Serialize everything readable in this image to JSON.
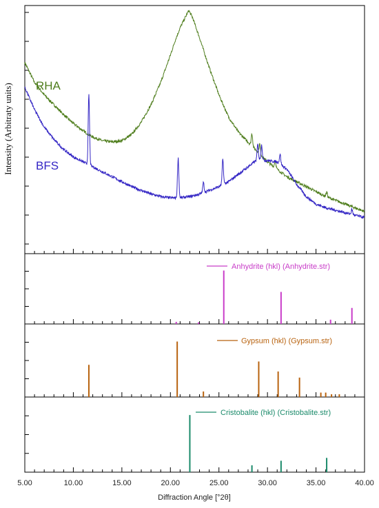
{
  "chart_data": {
    "type": "line",
    "xlabel": "Diffraction Angle [°2θ]",
    "ylabel": "Intensity (Arbitraty units)",
    "xlim": [
      5.0,
      40.0
    ],
    "x_ticks": [
      5.0,
      10.0,
      15.0,
      20.0,
      25.0,
      30.0,
      35.0,
      40.0
    ],
    "x_tick_labels": [
      "5.00",
      "10.00",
      "15.00",
      "20.00",
      "25.00",
      "30.00",
      "35.00",
      "40.00"
    ],
    "main_panel": {
      "ylim": [
        0,
        100
      ],
      "series": [
        {
          "name": "RHA",
          "color": "#4e7d1c",
          "x": [
            5,
            6,
            7,
            8,
            9,
            10,
            11,
            12,
            13,
            14,
            15,
            16,
            17,
            18,
            19,
            20,
            20.5,
            21,
            21.5,
            21.9,
            22.3,
            23,
            24,
            25,
            26,
            27,
            28,
            28.5,
            29,
            30,
            31,
            32,
            33,
            34,
            35,
            36,
            37,
            38,
            39,
            40
          ],
          "y": [
            77,
            69,
            64,
            60,
            56,
            52.5,
            49.5,
            47,
            45.5,
            45,
            45.5,
            48,
            53,
            60,
            69,
            80,
            86,
            91,
            95,
            98,
            95,
            87,
            75,
            64,
            55,
            49,
            45,
            43,
            41,
            37,
            34,
            31,
            29,
            27,
            25,
            23,
            21.5,
            20,
            18.5,
            17
          ],
          "peaks": [
            [
              28.4,
              5
            ],
            [
              29.2,
              4
            ],
            [
              30.8,
              3
            ],
            [
              36.1,
              2
            ]
          ]
        },
        {
          "name": "BFS",
          "color": "#3325c4",
          "x": [
            5,
            6,
            7,
            8,
            9,
            10,
            11,
            12,
            13,
            14,
            15,
            16,
            17,
            18,
            19,
            20,
            21,
            22,
            23,
            24,
            25,
            26,
            27,
            28,
            29,
            30,
            31,
            32,
            33,
            34,
            35,
            36,
            37,
            38,
            39,
            40
          ],
          "y": [
            67,
            58,
            51,
            46,
            42,
            39,
            37,
            35,
            33,
            31,
            29,
            27,
            25.5,
            24,
            23,
            22.5,
            22.5,
            23,
            24,
            25.5,
            27,
            29,
            32,
            35,
            38,
            37.5,
            37,
            34,
            28,
            23,
            20,
            18.5,
            17.5,
            16.5,
            15.5,
            14.5
          ],
          "peaks": [
            [
              11.6,
              28
            ],
            [
              20.8,
              16
            ],
            [
              23.4,
              4
            ],
            [
              25.4,
              10
            ],
            [
              29.0,
              6
            ],
            [
              29.4,
              6
            ],
            [
              31.3,
              4
            ],
            [
              38.7,
              2
            ]
          ]
        }
      ]
    },
    "reference_panels": [
      {
        "name": "Anhydrite (hkl) (Anhydrite.str)",
        "color": "#c83cc8",
        "ylim": [
          0,
          100
        ],
        "sticks": [
          [
            20.6,
            4
          ],
          [
            22.9,
            3
          ],
          [
            25.5,
            100
          ],
          [
            31.4,
            60
          ],
          [
            36.5,
            8
          ],
          [
            38.7,
            30
          ]
        ]
      },
      {
        "name": "Gypsum (hkl) (Gypsum.str)",
        "color": "#b8620e",
        "ylim": [
          0,
          100
        ],
        "sticks": [
          [
            11.6,
            58
          ],
          [
            20.7,
            100
          ],
          [
            23.4,
            10
          ],
          [
            29.1,
            64
          ],
          [
            31.1,
            46
          ],
          [
            33.3,
            35
          ],
          [
            35.5,
            8
          ],
          [
            36.0,
            8
          ],
          [
            36.6,
            5
          ],
          [
            37.4,
            5
          ]
        ]
      },
      {
        "name": "Cristobalite (hkl) (Cristobalite.str)",
        "color": "#1a8a6a",
        "ylim": [
          0,
          100
        ],
        "sticks": [
          [
            22.0,
            100
          ],
          [
            28.4,
            12
          ],
          [
            31.4,
            20
          ],
          [
            36.1,
            25
          ]
        ]
      }
    ]
  }
}
